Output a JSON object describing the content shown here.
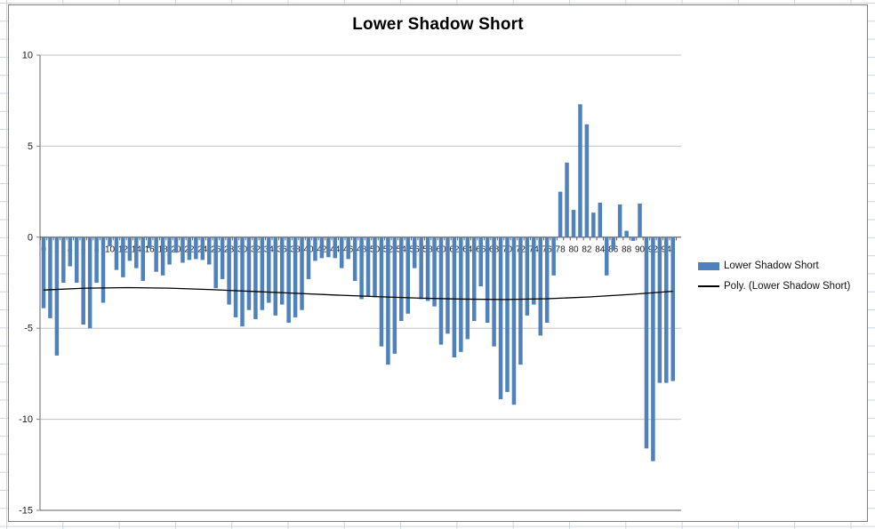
{
  "chart": {
    "title": "Lower Shadow Short",
    "legend": [
      {
        "type": "bar",
        "label": "Lower Shadow Short"
      },
      {
        "type": "line",
        "label": "Poly. (Lower Shadow Short)"
      }
    ],
    "colors": {
      "bar": "#4F81BD",
      "trend": "#000000",
      "gridline": "#C3C3C3",
      "axis": "#808080",
      "zero_axis": "#595959",
      "text": "#1A1A1A",
      "excel_gridline": "#CCD4E2",
      "chart_border": "#7F7F7F"
    }
  },
  "chart_data": {
    "type": "bar",
    "title": "Lower Shadow Short",
    "xlabel": "",
    "ylabel": "",
    "ylim": [
      -15,
      10
    ],
    "grid": true,
    "legend_position": "right",
    "yticks": [
      10,
      5,
      0,
      -5,
      -10,
      -15
    ],
    "ytick_labels": [
      "10",
      "5",
      "0",
      "-5",
      "-10",
      "-15"
    ],
    "xtick_labels": [
      "0",
      "2",
      "4",
      "6",
      "8",
      "10",
      "12",
      "14",
      "16",
      "18",
      "20",
      "22",
      "24",
      "26",
      "28",
      "30",
      "32",
      "34",
      "36",
      "38",
      "40",
      "42",
      "44",
      "46",
      "48",
      "50",
      "52",
      "54",
      "56",
      "58",
      "60",
      "62",
      "64",
      "66",
      "68",
      "70",
      "72",
      "74",
      "76",
      "78",
      "80",
      "82",
      "84",
      "86",
      "88",
      "90",
      "92",
      "94"
    ],
    "series": [
      {
        "name": "Lower Shadow Short",
        "type": "bar",
        "values": [
          -3.9,
          -4.45,
          -6.5,
          -2.5,
          -1.6,
          -2.5,
          -4.8,
          -5.0,
          -2.5,
          -3.6,
          -0.5,
          -1.8,
          -2.2,
          -1.3,
          -1.7,
          -2.4,
          -0.6,
          -1.9,
          -2.1,
          -1.5,
          -0.85,
          -1.4,
          -1.25,
          -1.2,
          -1.25,
          -1.5,
          -2.8,
          -2.3,
          -3.7,
          -4.4,
          -4.9,
          -4.0,
          -4.5,
          -4.0,
          -3.6,
          -4.3,
          -3.7,
          -4.7,
          -4.4,
          -4.0,
          -2.3,
          -1.3,
          -1.15,
          -1.1,
          -1.15,
          -1.7,
          -1.2,
          -2.4,
          -3.4,
          -3.25,
          -3.3,
          -6.0,
          -7.0,
          -6.4,
          -4.6,
          -4.2,
          -1.7,
          -3.4,
          -3.5,
          -3.8,
          -5.9,
          -5.3,
          -6.6,
          -6.3,
          -5.6,
          -4.6,
          -2.7,
          -4.7,
          -6.0,
          -8.9,
          -8.5,
          -9.2,
          -7.0,
          -4.3,
          -3.7,
          -5.4,
          -4.7,
          -2.1,
          2.5,
          4.1,
          1.5,
          7.3,
          6.2,
          1.35,
          1.9,
          -2.1,
          -0.7,
          1.8,
          0.35,
          -0.2,
          1.85,
          -11.6,
          -12.3,
          -8.0,
          -8.0,
          -7.9
        ]
      },
      {
        "name": "Poly. (Lower Shadow Short)",
        "type": "line",
        "trend_points": [
          -2.9,
          -2.8,
          -2.77,
          -2.8,
          -2.88,
          -2.98,
          -3.08,
          -3.18,
          -3.27,
          -3.35,
          -3.4,
          -3.42,
          -3.38,
          -3.28,
          -3.14,
          -2.97
        ]
      }
    ]
  }
}
